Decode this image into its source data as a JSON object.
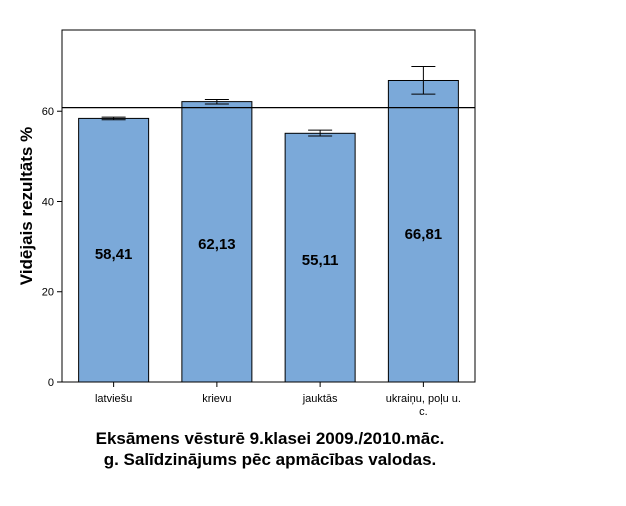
{
  "chart_data": {
    "type": "bar",
    "categories": [
      "latviešu",
      "krievu",
      "jauktās",
      "ukraiņu, poļu u. c."
    ],
    "values": [
      58.41,
      62.13,
      55.11,
      66.81
    ],
    "value_labels": [
      "58,41",
      "62,13",
      "55,11",
      "66,81"
    ],
    "error_bars": [
      {
        "low": 58.1,
        "high": 58.7
      },
      {
        "low": 61.6,
        "high": 62.6
      },
      {
        "low": 54.5,
        "high": 55.8
      },
      {
        "low": 63.8,
        "high": 69.9
      }
    ],
    "reference_line": 60.8,
    "title": [
      "Eksāmens vēsturē 9.klasei 2009./2010.māc.",
      "g. Salīdzinājums pēc apmācības valodas."
    ],
    "xlabel": "",
    "ylabel": "Vidējais rezultāts %",
    "ylim": [
      0,
      78
    ],
    "yticks": [
      0,
      20,
      40,
      60
    ],
    "grid": false,
    "legend": "none",
    "colors": {
      "bar_fill": "#7ba9d9",
      "bar_stroke": "#000000",
      "axis": "#000000"
    }
  }
}
